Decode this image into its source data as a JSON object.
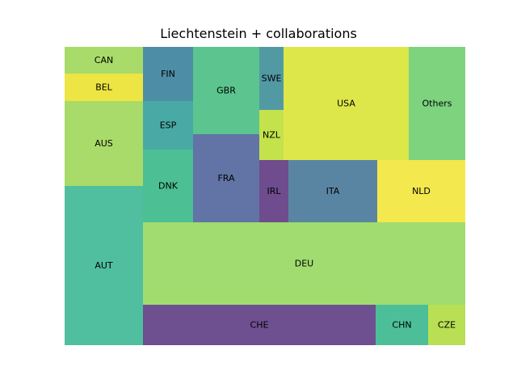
{
  "chart_data": {
    "type": "treemap",
    "title": "Liechtenstein + collaborations",
    "cells": [
      {
        "label": "CAN",
        "color": "#a8db69"
      },
      {
        "label": "BEL",
        "color": "#ece543"
      },
      {
        "label": "AUS",
        "color": "#a8db69"
      },
      {
        "label": "AUT",
        "color": "#4fbf9f"
      },
      {
        "label": "FIN",
        "color": "#4e8da6"
      },
      {
        "label": "ESP",
        "color": "#49a9a5"
      },
      {
        "label": "DNK",
        "color": "#4cbf94"
      },
      {
        "label": "GBR",
        "color": "#5cc48e"
      },
      {
        "label": "FRA",
        "color": "#6274a5"
      },
      {
        "label": "SWE",
        "color": "#529aa3"
      },
      {
        "label": "NZL",
        "color": "#c3e24b"
      },
      {
        "label": "IRL",
        "color": "#6e4c8d"
      },
      {
        "label": "USA",
        "color": "#dde74a"
      },
      {
        "label": "Others",
        "color": "#7dd37e"
      },
      {
        "label": "ITA",
        "color": "#5a85a2"
      },
      {
        "label": "NLD",
        "color": "#f3e84d"
      },
      {
        "label": "DEU",
        "color": "#a0dc6f"
      },
      {
        "label": "CHE",
        "color": "#6e4f8f"
      },
      {
        "label": "CHN",
        "color": "#4cbf99"
      },
      {
        "label": "CZE",
        "color": "#b9df54"
      }
    ]
  }
}
